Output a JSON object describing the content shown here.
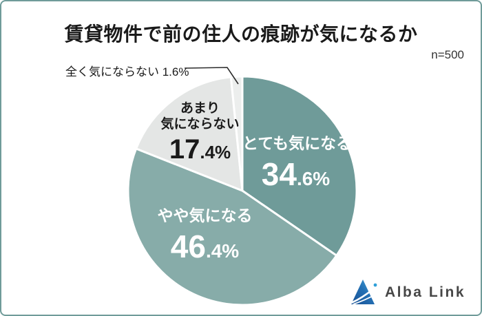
{
  "card": {
    "border_color": "#6f9b99",
    "background": "#ffffff"
  },
  "title": "賃貸物件で前の住人の痕跡が気になるか",
  "sample": {
    "label": "n=500"
  },
  "chart_data": {
    "type": "pie",
    "title": "賃貸物件で前の住人の痕跡が気になるか",
    "sample_size": 500,
    "start_angle": "top",
    "direction": "clockwise",
    "slices": [
      {
        "label": "とても気になる",
        "value": 34.6,
        "color": "#6f9b99",
        "text_color": "#ffffff"
      },
      {
        "label": "やや気になる",
        "value": 46.4,
        "color": "#87aca9",
        "text_color": "#ffffff"
      },
      {
        "label": "あまり気にならない",
        "value": 17.4,
        "color": "#e4e6e5",
        "text_color": "#1a1a1a"
      },
      {
        "label": "全く気にならない",
        "value": 1.6,
        "color": "#eceeed",
        "text_color": "#1a1a1a"
      }
    ]
  },
  "labels": {
    "very": {
      "name": "とても気になる",
      "main": "34",
      "sub": ".6%"
    },
    "somewhat": {
      "name": "やや気になる",
      "main": "46",
      "sub": ".4%"
    },
    "not_much": {
      "name_line1": "あまり",
      "name_line2": "気にならない",
      "main": "17",
      "sub": ".4%"
    },
    "not_at_all": {
      "text": "全く気にならない 1.6%"
    }
  },
  "logo": {
    "text": "Alba Link",
    "icon": "alba-link-triangle"
  }
}
